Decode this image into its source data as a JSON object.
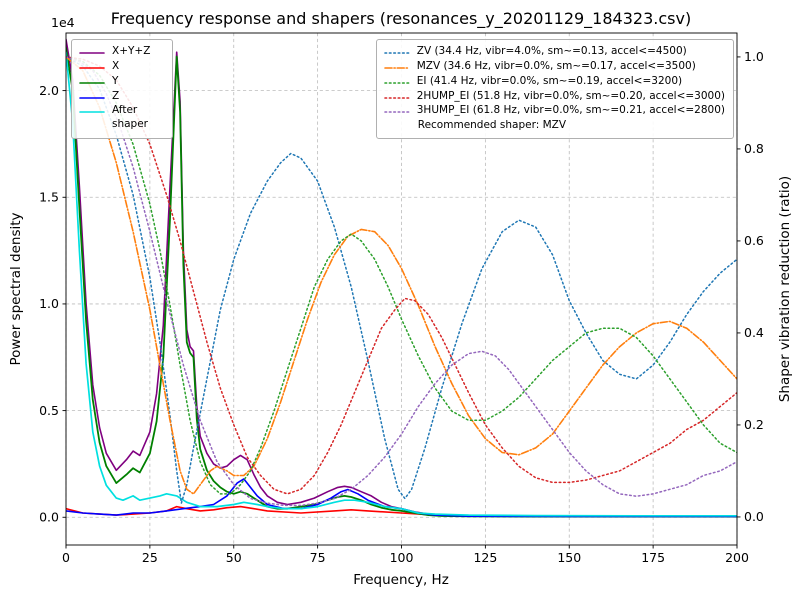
{
  "figure": {
    "title": "Frequency response and shapers (resonances_y_20201129_184323.csv)",
    "xlabel": "Frequency, Hz",
    "ylabel_left": "Power spectral density",
    "ylabel_right": "Shaper vibration reduction (ratio)",
    "offset_label": "1e4"
  },
  "legend_left": {
    "items": [
      {
        "label": "X+Y+Z",
        "color": "#800080",
        "style": "solid"
      },
      {
        "label": "X",
        "color": "#ff0000",
        "style": "solid"
      },
      {
        "label": "Y",
        "color": "#008000",
        "style": "solid"
      },
      {
        "label": "Z",
        "color": "#0000ff",
        "style": "solid"
      },
      {
        "label": "After shaper",
        "color": "#00e0e0",
        "style": "solid"
      }
    ]
  },
  "legend_right": {
    "items": [
      {
        "label": "ZV (34.4 Hz, vibr=4.0%, sm~=0.13, accel<=4500)",
        "color": "#1f77b4",
        "style": "dotted"
      },
      {
        "label": "MZV (34.6 Hz, vibr=0.0%, sm~=0.17, accel<=3500)",
        "color": "#ff7f0e",
        "style": "dashdot"
      },
      {
        "label": "EI (41.4 Hz, vibr=0.0%, sm~=0.19, accel<=3200)",
        "color": "#2ca02c",
        "style": "dotted"
      },
      {
        "label": "2HUMP_EI (51.8 Hz, vibr=0.0%, sm~=0.20, accel<=3000)",
        "color": "#d62728",
        "style": "dotted"
      },
      {
        "label": "3HUMP_EI (61.8 Hz, vibr=0.0%, sm~=0.21, accel<=2800)",
        "color": "#9467bd",
        "style": "dotted"
      }
    ],
    "note": "Recommended shaper: MZV"
  },
  "chart_data": {
    "type": "line",
    "title": "Frequency response and shapers (resonances_y_20201129_184323.csv)",
    "xlabel": "Frequency, Hz",
    "ylabel_left": "Power spectral density",
    "ylabel_right": "Shaper vibration reduction (ratio)",
    "psd_unit_multiplier": "1e4",
    "recommended_shaper": "MZV",
    "grid": true,
    "xlim": [
      0,
      200
    ],
    "ylim_left": [
      -0.13,
      2.27
    ],
    "ylim_right": [
      -0.061,
      1.052
    ],
    "x_ticks": [
      0,
      25,
      50,
      75,
      100,
      125,
      150,
      175,
      200
    ],
    "x_tick_labels": [
      "0",
      "25",
      "50",
      "75",
      "100",
      "125",
      "150",
      "175",
      "200"
    ],
    "y_left_ticks": [
      0.0,
      0.5,
      1.0,
      1.5,
      2.0
    ],
    "y_left_tick_labels": [
      "0.0",
      "0.5",
      "1.0",
      "1.5",
      "2.0"
    ],
    "y_right_ticks": [
      0.0,
      0.2,
      0.4,
      0.6,
      0.8,
      1.0
    ],
    "y_right_tick_labels": [
      "0.0",
      "0.2",
      "0.4",
      "0.6",
      "0.8",
      "1.0"
    ],
    "series": [
      {
        "name": "X+Y+Z",
        "axis": "left",
        "color": "#800080",
        "style": "solid",
        "width": 1.6,
        "x": [
          0,
          2,
          4,
          6,
          8,
          10,
          12,
          15,
          18,
          20,
          22,
          25,
          27,
          29,
          31,
          33,
          34,
          35,
          36,
          37,
          38,
          39,
          40,
          42,
          44,
          46,
          48,
          50,
          52,
          54,
          56,
          58,
          60,
          63,
          66,
          70,
          74,
          78,
          81,
          83,
          85,
          88,
          91,
          94,
          97,
          100,
          104,
          108,
          112,
          120,
          140,
          160,
          180,
          200
        ],
        "y": [
          2.24,
          2.05,
          1.55,
          1.0,
          0.62,
          0.42,
          0.3,
          0.22,
          0.27,
          0.31,
          0.29,
          0.4,
          0.58,
          0.9,
          1.55,
          2.18,
          1.95,
          1.25,
          0.88,
          0.8,
          0.78,
          0.52,
          0.38,
          0.3,
          0.25,
          0.23,
          0.24,
          0.27,
          0.29,
          0.27,
          0.2,
          0.14,
          0.1,
          0.07,
          0.06,
          0.07,
          0.09,
          0.12,
          0.14,
          0.145,
          0.14,
          0.12,
          0.1,
          0.07,
          0.05,
          0.04,
          0.025,
          0.015,
          0.008,
          0.005,
          0.004,
          0.003,
          0.003,
          0.003
        ]
      },
      {
        "name": "X",
        "axis": "left",
        "color": "#ff0000",
        "style": "solid",
        "width": 1.6,
        "x": [
          0,
          5,
          10,
          15,
          20,
          25,
          30,
          33,
          36,
          40,
          44,
          48,
          52,
          56,
          60,
          70,
          80,
          85,
          90,
          100,
          110,
          130,
          160,
          200
        ],
        "y": [
          0.04,
          0.02,
          0.015,
          0.01,
          0.015,
          0.02,
          0.03,
          0.05,
          0.04,
          0.03,
          0.035,
          0.045,
          0.05,
          0.04,
          0.03,
          0.02,
          0.03,
          0.035,
          0.03,
          0.02,
          0.01,
          0.005,
          0.004,
          0.004
        ]
      },
      {
        "name": "Y",
        "axis": "left",
        "color": "#008000",
        "style": "solid",
        "width": 1.8,
        "x": [
          0,
          2,
          4,
          6,
          8,
          10,
          12,
          15,
          18,
          20,
          22,
          25,
          27,
          29,
          31,
          33,
          34,
          35,
          36,
          37,
          38,
          39,
          40,
          42,
          44,
          46,
          48,
          50,
          52,
          54,
          56,
          58,
          60,
          63,
          66,
          70,
          74,
          78,
          81,
          83,
          85,
          88,
          91,
          94,
          97,
          100,
          104,
          108,
          112,
          120,
          140,
          160,
          180,
          200
        ],
        "y": [
          2.2,
          2.0,
          1.45,
          0.92,
          0.55,
          0.35,
          0.24,
          0.16,
          0.2,
          0.23,
          0.21,
          0.3,
          0.45,
          0.75,
          1.4,
          2.16,
          1.9,
          1.18,
          0.82,
          0.77,
          0.75,
          0.46,
          0.32,
          0.22,
          0.17,
          0.14,
          0.12,
          0.11,
          0.12,
          0.11,
          0.09,
          0.07,
          0.05,
          0.04,
          0.04,
          0.05,
          0.06,
          0.08,
          0.095,
          0.1,
          0.095,
          0.08,
          0.06,
          0.045,
          0.035,
          0.03,
          0.02,
          0.01,
          0.006,
          0.004,
          0.003,
          0.003,
          0.003,
          0.003
        ]
      },
      {
        "name": "Z",
        "axis": "left",
        "color": "#0000ff",
        "style": "solid",
        "width": 1.6,
        "x": [
          0,
          5,
          10,
          15,
          20,
          25,
          30,
          35,
          40,
          44,
          48,
          51,
          53,
          55,
          57,
          60,
          65,
          70,
          75,
          79,
          82,
          84,
          87,
          90,
          95,
          100,
          105,
          110,
          120,
          150,
          200
        ],
        "y": [
          0.03,
          0.02,
          0.015,
          0.01,
          0.02,
          0.02,
          0.03,
          0.04,
          0.05,
          0.06,
          0.1,
          0.16,
          0.18,
          0.14,
          0.1,
          0.06,
          0.04,
          0.04,
          0.06,
          0.09,
          0.12,
          0.13,
          0.11,
          0.08,
          0.05,
          0.04,
          0.02,
          0.01,
          0.005,
          0.004,
          0.004
        ]
      },
      {
        "name": "After shaper",
        "axis": "left",
        "color": "#00e0e0",
        "style": "solid",
        "width": 1.7,
        "x": [
          0,
          2,
          4,
          6,
          8,
          10,
          12,
          15,
          17,
          20,
          22,
          25,
          28,
          30,
          33,
          36,
          40,
          45,
          50,
          53,
          57,
          60,
          65,
          70,
          75,
          80,
          83,
          86,
          90,
          95,
          100,
          105,
          110,
          120,
          140,
          170,
          200
        ],
        "y": [
          2.18,
          1.85,
          1.25,
          0.72,
          0.4,
          0.24,
          0.15,
          0.09,
          0.08,
          0.1,
          0.08,
          0.09,
          0.1,
          0.11,
          0.1,
          0.07,
          0.05,
          0.05,
          0.06,
          0.07,
          0.06,
          0.05,
          0.04,
          0.04,
          0.05,
          0.07,
          0.08,
          0.08,
          0.07,
          0.05,
          0.04,
          0.02,
          0.015,
          0.01,
          0.008,
          0.007,
          0.007
        ]
      },
      {
        "name": "ZV",
        "axis": "right",
        "color": "#1f77b4",
        "style": "dotted",
        "width": 1.5,
        "x": [
          0,
          5,
          10,
          15,
          20,
          25,
          28,
          31,
          33,
          34.4,
          36,
          38,
          42,
          46,
          50,
          55,
          60,
          64,
          67,
          70,
          75,
          80,
          85,
          90,
          95,
          99,
          101,
          103,
          107,
          112,
          118,
          124,
          130,
          135,
          140,
          145,
          150,
          155,
          160,
          165,
          170,
          175,
          180,
          185,
          190,
          195,
          200
        ],
        "y": [
          1.0,
          0.98,
          0.93,
          0.83,
          0.7,
          0.52,
          0.38,
          0.22,
          0.1,
          0.03,
          0.07,
          0.15,
          0.3,
          0.45,
          0.56,
          0.66,
          0.73,
          0.77,
          0.79,
          0.78,
          0.73,
          0.63,
          0.5,
          0.34,
          0.17,
          0.06,
          0.04,
          0.06,
          0.15,
          0.28,
          0.42,
          0.54,
          0.62,
          0.645,
          0.63,
          0.57,
          0.47,
          0.4,
          0.34,
          0.31,
          0.3,
          0.33,
          0.38,
          0.44,
          0.49,
          0.53,
          0.56
        ]
      },
      {
        "name": "MZV",
        "axis": "right",
        "color": "#ff7f0e",
        "style": "dashdot",
        "width": 1.6,
        "x": [
          0,
          5,
          10,
          15,
          20,
          25,
          28,
          31,
          34,
          36,
          38,
          40,
          43,
          45,
          48,
          50,
          53,
          56,
          60,
          64,
          68,
          72,
          76,
          80,
          84,
          88,
          92,
          96,
          100,
          105,
          110,
          115,
          120,
          125,
          130,
          135,
          140,
          145,
          150,
          155,
          160,
          165,
          170,
          175,
          180,
          185,
          190,
          195,
          200
        ],
        "y": [
          1.0,
          0.97,
          0.89,
          0.77,
          0.62,
          0.45,
          0.33,
          0.21,
          0.1,
          0.06,
          0.05,
          0.07,
          0.1,
          0.11,
          0.1,
          0.09,
          0.09,
          0.11,
          0.17,
          0.25,
          0.34,
          0.43,
          0.51,
          0.57,
          0.61,
          0.625,
          0.62,
          0.59,
          0.54,
          0.46,
          0.37,
          0.29,
          0.22,
          0.17,
          0.14,
          0.135,
          0.15,
          0.18,
          0.23,
          0.28,
          0.33,
          0.37,
          0.4,
          0.42,
          0.425,
          0.41,
          0.38,
          0.34,
          0.3
        ]
      },
      {
        "name": "EI",
        "axis": "right",
        "color": "#2ca02c",
        "style": "dotted",
        "width": 1.5,
        "x": [
          0,
          5,
          10,
          15,
          20,
          25,
          28,
          31,
          34,
          37,
          40,
          43,
          46,
          49,
          52,
          55,
          58,
          62,
          66,
          70,
          74,
          78,
          82,
          85,
          88,
          92,
          96,
          100,
          105,
          110,
          115,
          120,
          125,
          130,
          135,
          140,
          145,
          150,
          155,
          160,
          165,
          170,
          175,
          180,
          185,
          190,
          195,
          200
        ],
        "y": [
          1.0,
          0.99,
          0.96,
          0.9,
          0.81,
          0.68,
          0.58,
          0.46,
          0.33,
          0.21,
          0.12,
          0.07,
          0.05,
          0.05,
          0.07,
          0.1,
          0.15,
          0.23,
          0.32,
          0.41,
          0.5,
          0.56,
          0.6,
          0.615,
          0.6,
          0.56,
          0.5,
          0.43,
          0.35,
          0.28,
          0.23,
          0.21,
          0.21,
          0.23,
          0.26,
          0.3,
          0.34,
          0.37,
          0.4,
          0.41,
          0.41,
          0.39,
          0.35,
          0.3,
          0.25,
          0.2,
          0.16,
          0.14
        ]
      },
      {
        "name": "2HUMP_EI",
        "axis": "right",
        "color": "#d62728",
        "style": "dotted",
        "width": 1.5,
        "x": [
          0,
          5,
          10,
          15,
          20,
          25,
          30,
          34,
          38,
          42,
          46,
          50,
          54,
          58,
          62,
          66,
          70,
          74,
          78,
          82,
          86,
          90,
          94,
          98,
          101,
          104,
          108,
          112,
          116,
          120,
          125,
          130,
          135,
          140,
          145,
          150,
          155,
          160,
          165,
          170,
          175,
          180,
          185,
          190,
          195,
          200
        ],
        "y": [
          1.0,
          0.995,
          0.98,
          0.95,
          0.89,
          0.81,
          0.7,
          0.6,
          0.49,
          0.38,
          0.28,
          0.2,
          0.13,
          0.09,
          0.06,
          0.05,
          0.06,
          0.09,
          0.14,
          0.2,
          0.27,
          0.34,
          0.41,
          0.45,
          0.475,
          0.47,
          0.44,
          0.39,
          0.33,
          0.27,
          0.2,
          0.15,
          0.11,
          0.085,
          0.075,
          0.075,
          0.08,
          0.09,
          0.1,
          0.12,
          0.14,
          0.16,
          0.19,
          0.21,
          0.24,
          0.27
        ]
      },
      {
        "name": "3HUMP_EI",
        "axis": "right",
        "color": "#9467bd",
        "style": "dotted",
        "width": 1.5,
        "x": [
          0,
          4,
          8,
          12,
          16,
          20,
          25,
          30,
          35,
          40,
          45,
          50,
          55,
          60,
          65,
          70,
          75,
          80,
          85,
          90,
          95,
          100,
          105,
          110,
          115,
          120,
          124,
          128,
          132,
          136,
          140,
          145,
          150,
          155,
          160,
          165,
          170,
          175,
          180,
          185,
          190,
          195,
          200
        ],
        "y": [
          1.0,
          0.99,
          0.97,
          0.92,
          0.85,
          0.76,
          0.62,
          0.47,
          0.33,
          0.21,
          0.12,
          0.07,
          0.04,
          0.03,
          0.025,
          0.025,
          0.03,
          0.04,
          0.06,
          0.09,
          0.13,
          0.18,
          0.24,
          0.29,
          0.33,
          0.355,
          0.36,
          0.35,
          0.32,
          0.28,
          0.24,
          0.19,
          0.14,
          0.1,
          0.07,
          0.05,
          0.045,
          0.05,
          0.06,
          0.07,
          0.09,
          0.1,
          0.12
        ]
      }
    ]
  }
}
